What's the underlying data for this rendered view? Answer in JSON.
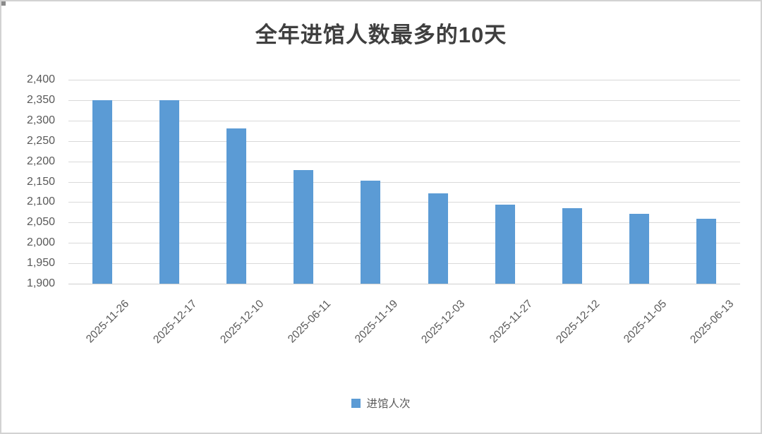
{
  "chart_data": {
    "type": "bar",
    "title": "全年进馆人数最多的10天",
    "categories": [
      "2025-11-26",
      "2025-12-17",
      "2025-12-10",
      "2025-06-11",
      "2025-11-19",
      "2025-12-03",
      "2025-11-27",
      "2025-12-12",
      "2025-11-05",
      "2025-06-13"
    ],
    "series": [
      {
        "name": "进馆人次",
        "color": "#5B9BD5",
        "values": [
          2350,
          2350,
          2280,
          2178,
          2153,
          2121,
          2094,
          2085,
          2072,
          2060
        ]
      }
    ],
    "xlabel": "",
    "ylabel": "",
    "ylim": [
      1900,
      2400
    ],
    "ytick_step": 50,
    "ytick_labels": [
      "1,900",
      "1,950",
      "2,000",
      "2,050",
      "2,100",
      "2,150",
      "2,200",
      "2,250",
      "2,300",
      "2,350",
      "2,400"
    ],
    "grid": true,
    "gridline_color": "#d9d9d9",
    "tick_label_color": "#595959",
    "title_color": "#3f3f3f",
    "legend_position": "bottom",
    "x_label_rotation_deg": -45
  }
}
